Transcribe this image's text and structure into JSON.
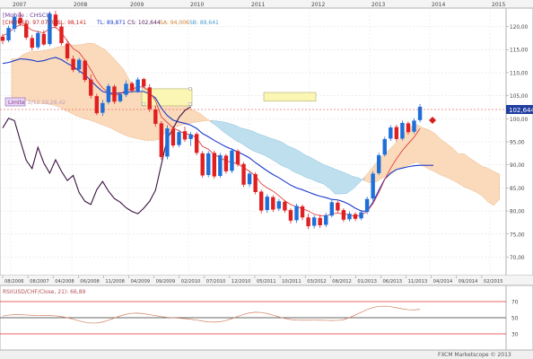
{
  "header": {
    "symbol": "[Mobile : CHSCI]",
    "line2": "[CHF/USD: 97.07] 93.",
    "sl": "SL: 98,141",
    "tl": "TL: 89,871",
    "cs": "CS: 102,644",
    "sa": "SA: 94,006",
    "sb": "SB: 89,641"
  },
  "year_labels": [
    "2007",
    "2008",
    "2009",
    "2010",
    "2011",
    "2012",
    "2013",
    "2014",
    "2015"
  ],
  "date_labels": [
    "08/2006",
    "08/2007",
    "04/2008",
    "06/2008",
    "11/2008",
    "04/2009",
    "09/2009",
    "02/2010",
    "07/2010",
    "12/2010",
    "05/2011",
    "10/2011",
    "03/2012",
    "08/2012",
    "01/2013",
    "06/2013",
    "11/2013",
    "04/2014",
    "09/2014",
    "02/2015"
  ],
  "price_ticks": [
    "120,00",
    "115,00",
    "110,00",
    "105,00",
    "100,00",
    "95,00",
    "90,00",
    "85,00",
    "80,00",
    "75,00",
    "70,00"
  ],
  "current_price": "102,644",
  "annotation": "Limite",
  "annotation_detail": "2/12 59,28,42",
  "rsi": {
    "label": "RSI(USD/CHF/Close, 21): 66,89",
    "levels": [
      "70",
      "50",
      "30"
    ]
  },
  "footer": "FXCM Marketscope © 2013",
  "colors": {
    "background": "#ffffff",
    "bull": "#1e6fd9",
    "bear": "#e02020",
    "tenkan": "#e03030",
    "kijun": "#1a3acc",
    "chikou": "#3a1040",
    "cloud_bull": "#fad7b4",
    "cloud_bear": "#b8dced",
    "rsi_line": "#d08060",
    "level_line": "#e03030"
  },
  "chart_data": {
    "type": "candlestick",
    "x_unit": "bars",
    "ylim": [
      66,
      124
    ],
    "y_ticks": [
      120,
      115,
      110,
      105,
      100,
      95,
      90,
      85,
      80,
      75,
      70
    ],
    "candles": [
      [
        0,
        117.8,
        118.4,
        116.2,
        116.9
      ],
      [
        1,
        117.0,
        120.2,
        116.6,
        119.7
      ],
      [
        2,
        119.5,
        122.8,
        118.8,
        122.1
      ],
      [
        3,
        121.9,
        123.2,
        120.1,
        120.7
      ],
      [
        4,
        120.6,
        121.2,
        117.1,
        117.6
      ],
      [
        5,
        117.5,
        118.2,
        114.8,
        115.4
      ],
      [
        6,
        115.5,
        119.1,
        115.1,
        118.6
      ],
      [
        7,
        118.4,
        119.2,
        115.8,
        116.1
      ],
      [
        8,
        116.2,
        123.3,
        115.8,
        122.8
      ],
      [
        9,
        122.6,
        123.4,
        119.6,
        120.1
      ],
      [
        10,
        120.0,
        120.6,
        115.9,
        116.4
      ],
      [
        11,
        116.3,
        117.1,
        112.6,
        113.1
      ],
      [
        12,
        113.0,
        113.7,
        110.1,
        110.6
      ],
      [
        13,
        110.7,
        113.2,
        109.9,
        112.8
      ],
      [
        14,
        112.6,
        112.9,
        107.9,
        108.4
      ],
      [
        15,
        108.5,
        109.6,
        104.4,
        105.0
      ],
      [
        16,
        104.9,
        105.4,
        100.8,
        101.2
      ],
      [
        17,
        101.3,
        104.1,
        100.6,
        103.4
      ],
      [
        18,
        103.6,
        107.6,
        103.1,
        107.1
      ],
      [
        19,
        107.0,
        107.4,
        103.2,
        103.7
      ],
      [
        20,
        103.8,
        105.6,
        103.5,
        105.3
      ],
      [
        21,
        105.2,
        108.3,
        104.7,
        107.6
      ],
      [
        22,
        107.7,
        108.1,
        105.6,
        106.1
      ],
      [
        23,
        106.0,
        109.0,
        105.6,
        108.5
      ],
      [
        24,
        108.6,
        108.9,
        106.5,
        107.0
      ],
      [
        25,
        106.8,
        107.5,
        101.5,
        102.1
      ],
      [
        26,
        102.0,
        102.8,
        98.3,
        98.9
      ],
      [
        27,
        99.0,
        99.5,
        91.1,
        91.7
      ],
      [
        28,
        91.8,
        98.6,
        91.2,
        97.9
      ],
      [
        29,
        97.8,
        98.4,
        93.7,
        94.2
      ],
      [
        30,
        94.3,
        97.6,
        93.8,
        97.1
      ],
      [
        31,
        97.3,
        98.3,
        95.0,
        95.5
      ],
      [
        32,
        95.6,
        97.1,
        94.1,
        96.6
      ],
      [
        33,
        96.7,
        97.1,
        92.1,
        92.6
      ],
      [
        34,
        92.5,
        93.0,
        87.2,
        87.7
      ],
      [
        35,
        87.8,
        93.0,
        87.3,
        92.5
      ],
      [
        36,
        92.6,
        93.1,
        87.0,
        87.5
      ],
      [
        37,
        87.6,
        92.6,
        87.2,
        92.1
      ],
      [
        38,
        92.0,
        92.4,
        88.1,
        88.6
      ],
      [
        39,
        88.7,
        93.6,
        88.2,
        93.1
      ],
      [
        40,
        93.0,
        93.4,
        89.6,
        90.1
      ],
      [
        41,
        90.2,
        90.6,
        85.2,
        85.7
      ],
      [
        42,
        85.8,
        88.6,
        85.2,
        88.1
      ],
      [
        43,
        88.0,
        88.4,
        83.6,
        84.1
      ],
      [
        44,
        84.2,
        84.6,
        79.5,
        80.1
      ],
      [
        45,
        80.2,
        83.6,
        79.6,
        83.1
      ],
      [
        46,
        83.0,
        83.4,
        79.8,
        80.3
      ],
      [
        47,
        80.5,
        82.6,
        80.0,
        82.1
      ],
      [
        48,
        82.0,
        82.4,
        79.6,
        80.1
      ],
      [
        49,
        80.2,
        80.6,
        77.3,
        77.9
      ],
      [
        50,
        78.0,
        81.6,
        77.4,
        81.1
      ],
      [
        51,
        81.0,
        81.4,
        78.0,
        78.6
      ],
      [
        52,
        78.6,
        79.4,
        76.1,
        76.7
      ],
      [
        53,
        76.8,
        79.1,
        76.2,
        78.6
      ],
      [
        54,
        78.5,
        79.2,
        76.3,
        76.9
      ],
      [
        55,
        77.0,
        79.6,
        76.5,
        79.1
      ],
      [
        56,
        79.0,
        82.4,
        78.6,
        81.9
      ],
      [
        57,
        81.8,
        82.2,
        79.6,
        80.1
      ],
      [
        58,
        80.2,
        80.6,
        77.6,
        78.1
      ],
      [
        59,
        78.2,
        79.9,
        77.7,
        79.4
      ],
      [
        60,
        79.3,
        79.7,
        77.8,
        78.3
      ],
      [
        61,
        78.4,
        80.2,
        78.0,
        79.7
      ],
      [
        62,
        79.8,
        83.1,
        79.3,
        82.6
      ],
      [
        63,
        82.7,
        88.6,
        82.2,
        88.1
      ],
      [
        64,
        88.2,
        92.6,
        87.8,
        92.1
      ],
      [
        65,
        92.2,
        96.1,
        91.8,
        95.6
      ],
      [
        66,
        95.7,
        98.6,
        95.2,
        98.1
      ],
      [
        67,
        98.2,
        98.7,
        95.1,
        95.6
      ],
      [
        68,
        95.7,
        99.6,
        95.3,
        99.1
      ],
      [
        69,
        99.0,
        99.4,
        96.6,
        97.1
      ],
      [
        70,
        97.2,
        100.1,
        96.8,
        99.6
      ],
      [
        71,
        99.7,
        103.2,
        99.2,
        102.6
      ]
    ],
    "tenkan_sen": [
      118.0,
      118.6,
      119.8,
      120.4,
      120.1,
      119.2,
      118.9,
      118.6,
      119.6,
      119.9,
      118.6,
      116.9,
      115.2,
      114.4,
      112.7,
      110.6,
      108.3,
      106.7,
      105.6,
      105.0,
      105.4,
      106.2,
      106.4,
      106.9,
      106.9,
      105.8,
      103.9,
      100.4,
      99.2,
      98.0,
      97.4,
      96.7,
      96.6,
      95.8,
      94.0,
      93.4,
      92.2,
      91.6,
      90.8,
      90.6,
      90.2,
      89.4,
      88.6,
      87.6,
      85.9,
      85.0,
      84.3,
      83.3,
      82.2,
      81.4,
      80.9,
      80.5,
      80.0,
      79.3,
      79.0,
      78.9,
      79.4,
      79.5,
      79.4,
      79.1,
      78.9,
      79.1,
      79.9,
      81.6,
      84.0,
      86.8,
      89.3,
      91.3,
      93.1,
      94.6,
      96.0,
      97.9
    ],
    "kijun_sen": [
      112.0,
      112.2,
      112.6,
      113.0,
      112.9,
      112.7,
      112.4,
      112.6,
      113.0,
      113.3,
      112.8,
      112.0,
      111.3,
      110.4,
      109.5,
      108.3,
      107.0,
      105.9,
      105.6,
      105.5,
      105.6,
      105.7,
      105.9,
      105.9,
      105.9,
      105.4,
      104.5,
      102.3,
      100.7,
      99.7,
      99.3,
      99.0,
      98.6,
      97.9,
      96.8,
      96.1,
      95.3,
      94.6,
      93.9,
      93.4,
      92.8,
      92.2,
      91.5,
      90.5,
      89.6,
      88.7,
      87.9,
      87.2,
      86.4,
      85.6,
      85.0,
      84.6,
      84.1,
      83.6,
      83.2,
      82.9,
      82.5,
      82.4,
      82.0,
      81.4,
      80.6,
      80.0,
      79.9,
      81.9,
      84.5,
      86.9,
      88.2,
      89.0,
      89.3,
      89.6,
      89.8,
      89.9
    ],
    "chikou_span": [
      98.0,
      100.1,
      99.6,
      95.2,
      91.0,
      89.2,
      93.8,
      90.4,
      88.2,
      91.1,
      88.6,
      86.6,
      87.7,
      84.0,
      82.1,
      81.4,
      84.6,
      86.4,
      84.3,
      82.7,
      81.9,
      80.7,
      79.9,
      79.4,
      80.6,
      82.1,
      84.5,
      90.1,
      95.7,
      97.9,
      100.3,
      101.8,
      102.6
    ],
    "cloud_top": [
      113.0,
      113.0,
      114.0,
      114.5,
      114.6,
      114.7,
      114.9,
      115.2,
      115.6,
      115.8,
      115.9,
      116.0,
      116.1,
      116.4,
      116.3,
      115.6,
      114.9,
      113.6,
      112.2,
      110.8,
      108.4,
      106.8,
      105.7,
      104.9,
      104.5,
      104.2,
      104.5,
      103.8,
      103.5,
      103.1,
      102.6,
      101.8,
      101.2,
      100.2,
      99.2,
      98.3,
      97.2,
      96.3,
      95.4,
      94.7,
      93.9,
      93.1,
      92.6,
      92.1,
      91.4,
      90.6,
      89.8,
      89.3,
      88.5,
      88.0,
      87.3,
      86.9,
      86.3,
      85.9,
      85.0,
      83.7,
      83.7,
      83.8,
      84.7,
      85.9,
      87.3,
      88.8,
      90.4,
      91.8,
      93.0,
      94.3,
      95.6,
      97.1,
      98.3,
      98.7,
      98.0,
      97.6,
      96.8,
      95.6,
      94.6,
      93.7,
      92.4,
      92.4,
      91.4,
      90.6,
      89.7,
      89.3,
      88.6,
      88.0
    ],
    "cloud_bottom": [
      104.6,
      104.4,
      104.1,
      103.8,
      103.6,
      103.3,
      103.2,
      103.0,
      102.6,
      101.9,
      101.3,
      100.6,
      100.2,
      99.8,
      99.4,
      98.9,
      98.4,
      97.9,
      97.2,
      96.6,
      96.1,
      95.8,
      95.5,
      95.3,
      95.3,
      95.5,
      96.7,
      97.5,
      98.2,
      98.7,
      98.9,
      99.2,
      99.4,
      99.6,
      99.6,
      99.5,
      99.3,
      99.0,
      98.6,
      98.0,
      97.7,
      97.3,
      96.7,
      96.3,
      95.8,
      95.4,
      94.9,
      94.1,
      93.6,
      92.9,
      92.1,
      91.5,
      90.8,
      90.1,
      89.6,
      89.1,
      88.6,
      88.1,
      87.5,
      87.2,
      86.6,
      86.1,
      86.3,
      87.1,
      87.6,
      88.4,
      89.3,
      89.7,
      90.2,
      90.6,
      89.8,
      89.1,
      88.5,
      87.8,
      87.3,
      86.7,
      86.0,
      85.2,
      84.7,
      84.1,
      83.3,
      82.0,
      81.2,
      82.5
    ]
  }
}
